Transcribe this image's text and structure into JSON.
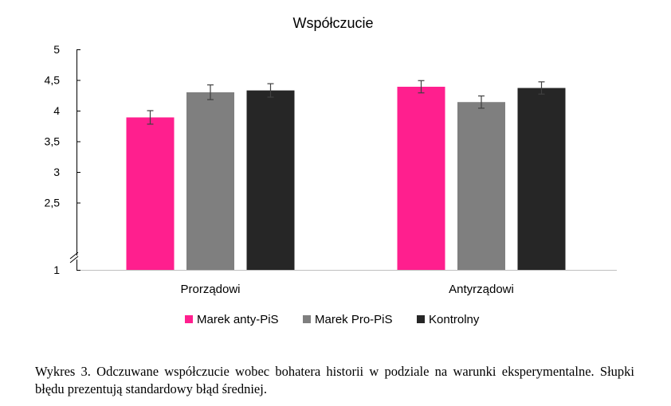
{
  "chart_data": {
    "type": "bar",
    "title": "Współczucie",
    "categories": [
      "Prorządowi",
      "Antyrządowi"
    ],
    "series": [
      {
        "name": "Marek anty-PiS",
        "color": "#FF1F8E",
        "values": [
          3.89,
          4.39
        ],
        "errors": [
          0.11,
          0.1
        ]
      },
      {
        "name": "Marek Pro-PiS",
        "color": "#7F7F7F",
        "values": [
          4.3,
          4.14
        ],
        "errors": [
          0.12,
          0.1
        ]
      },
      {
        "name": "Kontrolny",
        "color": "#262626",
        "values": [
          4.33,
          4.37
        ],
        "errors": [
          0.11,
          0.1
        ]
      }
    ],
    "ylim": [
      2,
      5
    ],
    "yticks": [
      1,
      2.5,
      3,
      3.5,
      4,
      4.5,
      5
    ],
    "ytick_labels": [
      "1",
      "2,5",
      "3",
      "3,5",
      "4",
      "4,5",
      "5"
    ],
    "axis_break": true,
    "legend_position": "bottom",
    "grid": false
  },
  "caption": "Wykres 3. Odczuwane współczucie wobec bohatera historii w podziale na warunki eksperymentalne. Słupki błędu prezentują standardowy błąd średniej."
}
